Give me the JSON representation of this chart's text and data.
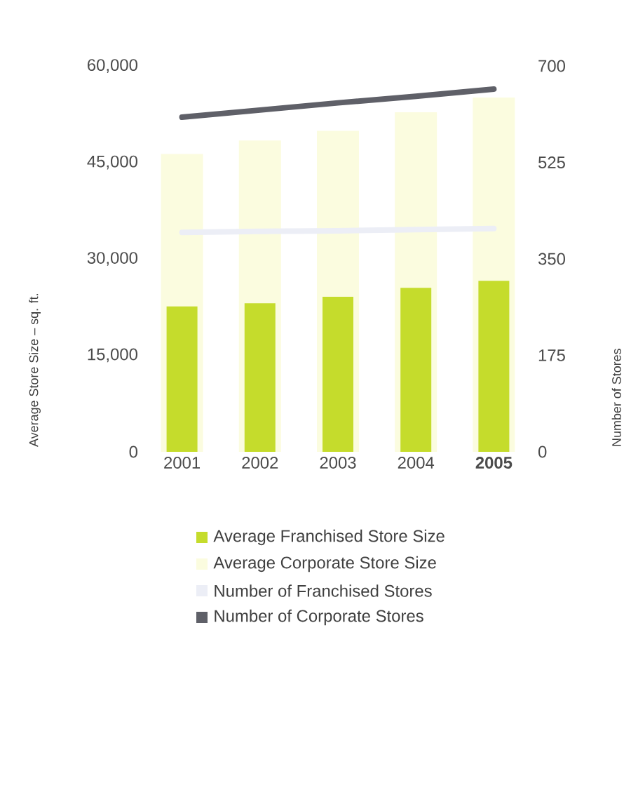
{
  "chart_data": {
    "type": "bar",
    "categories": [
      "2001",
      "2002",
      "2003",
      "2004",
      "**2005**"
    ],
    "ylabel": "Average Store Size – sq. ft.",
    "y2label": "Number of Stores",
    "ylim": [
      0,
      60000
    ],
    "yticks": [
      0,
      {
        "value": 15000,
        "label": "15,000"
      },
      {
        "value": 30000,
        "label": "30,000"
      },
      {
        "value": 45000,
        "label": "45,000"
      },
      {
        "value": 60000,
        "label": "60,000"
      }
    ],
    "y2lim": [
      0,
      700
    ],
    "y2ticks": [
      0,
      175,
      350,
      525,
      700
    ],
    "legend": "bottom",
    "grid": false,
    "series": [
      {
        "name": "Average Franchised Store Size",
        "color": "#c5dc2c",
        "values": [
          22600,
          23100,
          24100,
          25500,
          26600
        ]
      },
      {
        "name": "Average Corporate Store Size",
        "color": "#fbfcdf",
        "values": [
          46300,
          48400,
          49900,
          52800,
          55100
        ]
      },
      {
        "name": "Number of Franchised Stores",
        "type": "line",
        "axis": "y2",
        "color": "#eceef6",
        "values": [
          398,
          400,
          401,
          403,
          405
        ]
      },
      {
        "name": "Number of Corporate Stores",
        "type": "line",
        "axis": "y2",
        "color": "#5f6068",
        "values": [
          607,
          620,
          633,
          645,
          658
        ]
      }
    ]
  }
}
